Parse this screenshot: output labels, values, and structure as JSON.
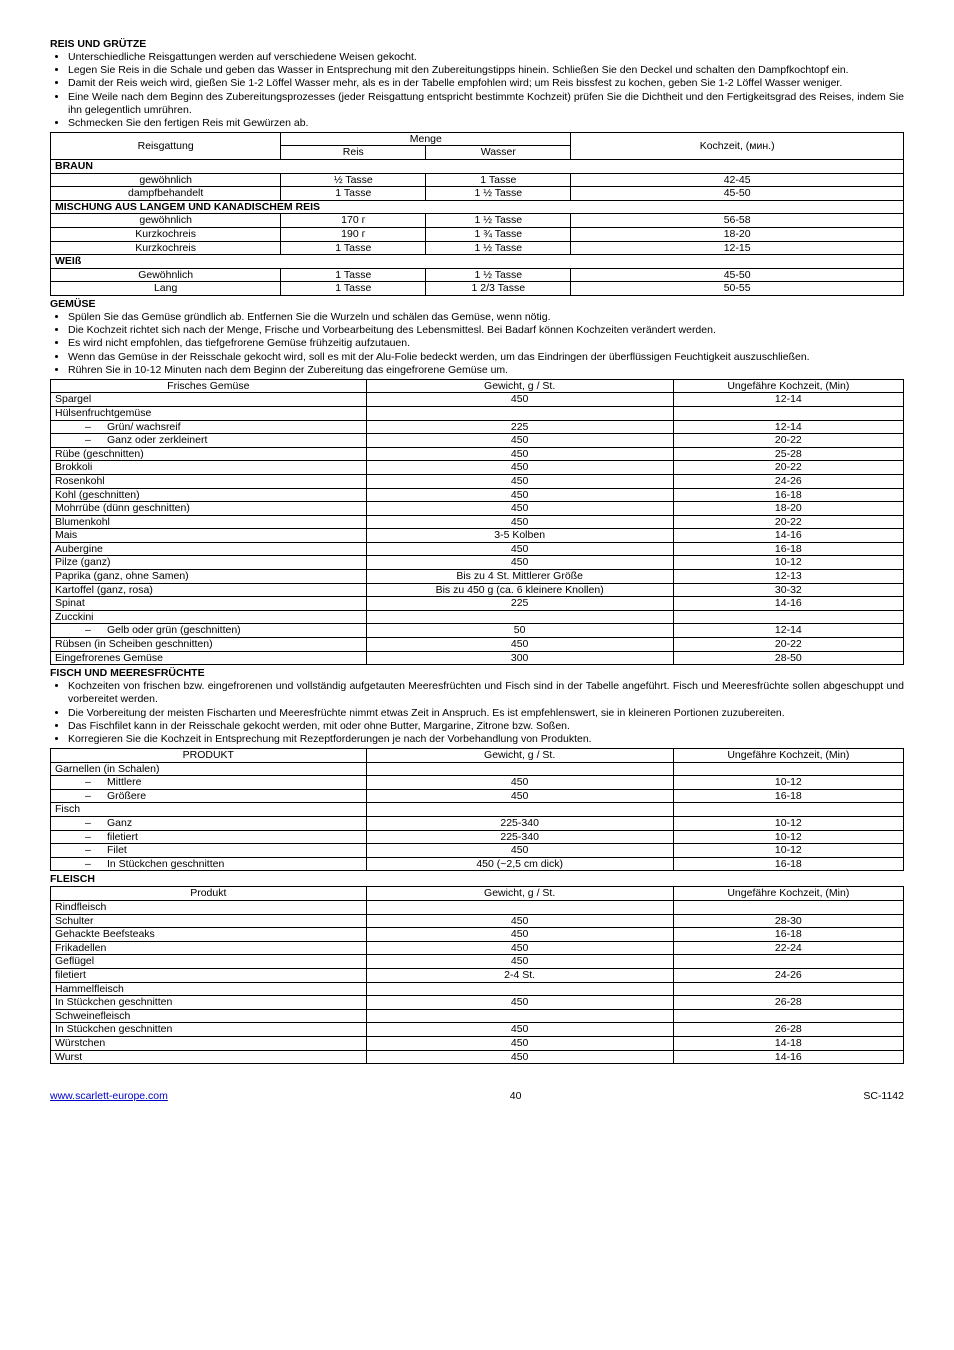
{
  "sec1": {
    "heading": "REIS UND GRÜTZE",
    "bullets": [
      "Unterschiedliche Reisgattungen werden auf verschiedene Weisen gekocht.",
      "Legen Sie Reis in die Schale und geben das Wasser in Entsprechung mit den Zubereitungstipps hinein. Schließen Sie den Deckel und schalten den Dampfkochtopf ein.",
      "Damit der Reis weich wird, gießen Sie 1-2 Löffel Wasser mehr, als es in der Tabelle empfohlen wird; um Reis bissfest zu kochen, geben Sie 1-2 Löffel Wasser weniger.",
      "Eine Weile nach dem Beginn des Zubereitungsprozesses (jeder Reisgattung entspricht bestimmte Kochzeit) prüfen Sie die Dichtheit und den Fertigkeitsgrad des Reises, indem Sie ihn gelegentlich umrühren.",
      "Schmecken Sie den fertigen Reis mit Gewürzen ab."
    ],
    "table": {
      "h_type": "Reisgattung",
      "h_amount": "Menge",
      "h_rice": "Reis",
      "h_water": "Wasser",
      "h_time": "Kochzeit, (мин.)",
      "s1": "BRAUN",
      "r1": {
        "a": "gewöhnlich",
        "b": "½ Tasse",
        "c": "1 Tasse",
        "d": "42-45"
      },
      "r2": {
        "a": "dampfbehandelt",
        "b": "1 Tasse",
        "c": "1 ½ Tasse",
        "d": "45-50"
      },
      "s2": "MISCHUNG AUS LANGEM UND KANADISCHEM REIS",
      "r3": {
        "a": "gewöhnlich",
        "b": "170 г",
        "c": "1 ½ Tasse",
        "d": "56-58"
      },
      "r4": {
        "a": "Kurzkochreis",
        "b": "190 г",
        "c": "1 ¾ Tasse",
        "d": "18-20"
      },
      "r5": {
        "a": "Kurzkochreis",
        "b": "1 Tasse",
        "c": "1 ½ Tasse",
        "d": "12-15"
      },
      "s3": "WEIß",
      "r6": {
        "a": "Gewöhnlich",
        "b": "1 Tasse",
        "c": "1 ½ Tasse",
        "d": "45-50"
      },
      "r7": {
        "a": "Lang",
        "b": "1 Tasse",
        "c": "1 2/3 Tasse",
        "d": "50-55"
      }
    }
  },
  "sec2": {
    "heading": "GEMÜSE",
    "bullets": [
      "Spülen Sie das Gemüse gründlich ab. Entfernen Sie die Wurzeln und schälen das Gemüse, wenn nötig.",
      "Die Kochzeit richtet sich nach der Menge, Frische und Vorbearbeitung des Lebensmittesl. Bei Badarf können Kochzeiten verändert werden.",
      "Es wird nicht empfohlen, das tiefgefrorene Gemüse frühzeitig aufzutauen.",
      "Wenn das Gemüse in der Reisschale gekocht wird, soll es mit der Alu-Folie bedeckt werden, um das Eindringen der überflüssigen Feuchtigkeit auszuschließen.",
      "Rühren Sie in 10-12 Minuten nach dem Beginn der Zubereitung das eingefrorene Gemüse um."
    ],
    "th": {
      "a": "Frisches Gemüse",
      "b": "Gewicht, g / St.",
      "c": "Ungefähre Kochzeit, (Min)"
    },
    "rows": [
      {
        "a": "Spargel",
        "b": "450",
        "c": "12-14"
      },
      {
        "a": "Hülsenfruchtgemüse",
        "b": "",
        "c": ""
      },
      {
        "a": "Grün/ wachsreif",
        "i": true,
        "b": "225",
        "c": "12-14"
      },
      {
        "a": "Ganz oder zerkleinert",
        "i": true,
        "b": "450",
        "c": "20-22"
      },
      {
        "a": "Rübe (geschnitten)",
        "b": "450",
        "c": "25-28"
      },
      {
        "a": "Brokkoli",
        "b": "450",
        "c": "20-22"
      },
      {
        "a": "Rosenkohl",
        "b": "450",
        "c": "24-26"
      },
      {
        "a": "Kohl (geschnitten)",
        "b": "450",
        "c": "16-18"
      },
      {
        "a": "Mohrrübe (dünn geschnitten)",
        "b": "450",
        "c": "18-20"
      },
      {
        "a": "Blumenkohl",
        "b": "450",
        "c": "20-22"
      },
      {
        "a": "Mais",
        "b": "3-5 Kolben",
        "c": "14-16"
      },
      {
        "a": "Aubergine",
        "b": "450",
        "c": "16-18"
      },
      {
        "a": "Pilze (ganz)",
        "b": "450",
        "c": "10-12"
      },
      {
        "a": "Paprika (ganz, ohne Samen)",
        "b": "Bis zu 4 St. Mittlerer Größe",
        "c": "12-13"
      },
      {
        "a": "Kartoffel (ganz, rosa)",
        "b": "Bis zu 450 g (ca. 6 kleinere Knollen)",
        "c": "30-32"
      },
      {
        "a": "Spinat",
        "b": "225",
        "c": "14-16"
      },
      {
        "a": "Zucckini",
        "b": "",
        "c": ""
      },
      {
        "a": "Gelb oder grün (geschnitten)",
        "i": true,
        "b": "50",
        "c": "12-14"
      },
      {
        "a": "Rübsen (in Scheiben geschnitten)",
        "b": "450",
        "c": "20-22"
      },
      {
        "a": "Eingefrorenes Gemüse",
        "b": "300",
        "c": "28-50"
      }
    ]
  },
  "sec3": {
    "heading": "FISCH UND MEERESFRÜCHTE",
    "bullets": [
      "Kochzeiten von frischen bzw. eingefrorenen und vollständig aufgetauten Meeresfrüchten und Fisch sind in der Tabelle angeführt. Fisch und Meeresfrüchte sollen abgeschuppt und vorbereitet werden.",
      "Die Vorbereitung der meisten Fischarten und Meeresfrüchte nimmt etwas Zeit in Anspruch. Es ist empfehlenswert, sie in kleineren Portionen zuzubereiten.",
      "Das Fischfilet kann in der Reisschale gekocht werden, mit oder ohne Butter, Margarine, Zitrone bzw. Soßen.",
      "Korregieren Sie die Kochzeit in Entsprechung mit Rezeptforderungen je nach der Vorbehandlung von Produkten."
    ],
    "th": {
      "a": "PRODUKT",
      "b": "Gewicht, g / St.",
      "c": "Ungefähre Kochzeit, (Min)"
    },
    "rows": [
      {
        "a": "Garnellen (in Schalen)",
        "b": "",
        "c": ""
      },
      {
        "a": "Mittlere",
        "i": true,
        "b": "450",
        "c": "10-12"
      },
      {
        "a": "Größere",
        "i": true,
        "b": "450",
        "c": "16-18"
      },
      {
        "a": "Fisch",
        "b": "",
        "c": ""
      },
      {
        "a": "Ganz",
        "i": true,
        "b": "225-340",
        "c": "10-12"
      },
      {
        "a": "filetiert",
        "i": true,
        "b": "225-340",
        "c": "10-12"
      },
      {
        "a": "Filet",
        "i": true,
        "b": "450",
        "c": "10-12"
      },
      {
        "a": "In Stückchen geschnitten",
        "i": true,
        "b": "450 (~2,5 cm dick)",
        "c": "16-18"
      }
    ]
  },
  "sec4": {
    "heading": "FLEISCH",
    "th": {
      "a": "Produkt",
      "b": "Gewicht, g / St.",
      "c": "Ungefähre Kochzeit, (Min)"
    },
    "rows": [
      {
        "a": "Rindfleisch",
        "b": "",
        "c": ""
      },
      {
        "a": "Schulter",
        "b": "450",
        "c": "28-30"
      },
      {
        "a": "Gehackte Beefsteaks",
        "b": "450",
        "c": "16-18"
      },
      {
        "a": "Frikadellen",
        "b": "450",
        "c": "22-24"
      },
      {
        "a": "Geflügel",
        "b": "450",
        "c": ""
      },
      {
        "a": "filetiert",
        "b": "2-4 St.",
        "c": "24-26"
      },
      {
        "a": "Hammelfleisch",
        "b": "",
        "c": ""
      },
      {
        "a": "In Stückchen geschnitten",
        "b": "450",
        "c": "26-28"
      },
      {
        "a": "Schweinefleisch",
        "b": "",
        "c": ""
      },
      {
        "a": "In Stückchen geschnitten",
        "b": "450",
        "c": "26-28"
      },
      {
        "a": "Würstchen",
        "b": "450",
        "c": "14-18"
      },
      {
        "a": "Wurst",
        "b": "450",
        "c": "14-16"
      }
    ]
  },
  "footer": {
    "url": "www.scarlett-europe.com",
    "page": "40",
    "code": "SC-1142"
  }
}
